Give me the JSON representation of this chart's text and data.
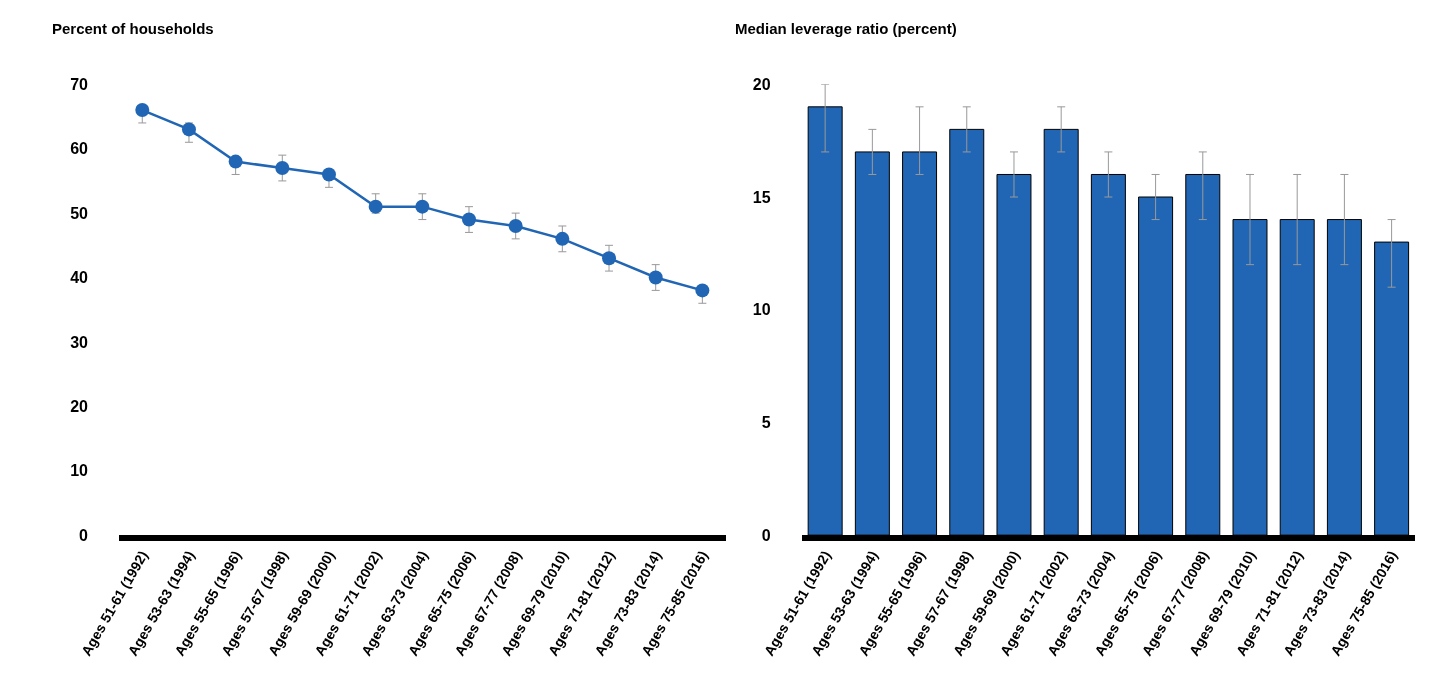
{
  "chart_data": [
    {
      "type": "line",
      "ylabel": "Percent of households",
      "categories": [
        "Ages 51-61 (1992)",
        "Ages 53-63 (1994)",
        "Ages 55-65 (1996)",
        "Ages 57-67 (1998)",
        "Ages 59-69 (2000)",
        "Ages 61-71 (2002)",
        "Ages 63-73 (2004)",
        "Ages 65-75 (2006)",
        "Ages 67-77 (2008)",
        "Ages 69-79 (2010)",
        "Ages 71-81 (2012)",
        "Ages 73-83 (2014)",
        "Ages 75-85 (2016)"
      ],
      "series": [
        {
          "color": "#2166b4",
          "values": [
            66,
            63,
            58,
            57,
            56,
            51,
            51,
            49,
            48,
            46,
            43,
            40,
            38
          ],
          "errors": [
            [
              64,
              66
            ],
            [
              61,
              64
            ],
            [
              56,
              58
            ],
            [
              55,
              59
            ],
            [
              54,
              56
            ],
            [
              50,
              53
            ],
            [
              49,
              53
            ],
            [
              47,
              51
            ],
            [
              46,
              50
            ],
            [
              44,
              48
            ],
            [
              41,
              45
            ],
            [
              38,
              42
            ],
            [
              36,
              38
            ]
          ]
        }
      ],
      "ylim": [
        0,
        70
      ],
      "yticks": [
        0,
        10,
        20,
        30,
        40,
        50,
        60,
        70
      ],
      "marker": "circle",
      "line_style": "solid"
    },
    {
      "type": "bar",
      "ylabel": "Median leverage ratio (percent)",
      "categories": [
        "Ages 51-61 (1992)",
        "Ages 53-63 (1994)",
        "Ages 55-65 (1996)",
        "Ages 57-67 (1998)",
        "Ages 59-69 (2000)",
        "Ages 61-71 (2002)",
        "Ages 63-73 (2004)",
        "Ages 65-75 (2006)",
        "Ages 67-77 (2008)",
        "Ages 69-79 (2010)",
        "Ages 71-81 (2012)",
        "Ages 73-83 (2014)",
        "Ages 75-85 (2016)"
      ],
      "series": [
        {
          "color": "#2166b4",
          "values": [
            19,
            17,
            17,
            18,
            16,
            18,
            16,
            15,
            16,
            14,
            14,
            14,
            13
          ],
          "errors": [
            [
              17,
              20
            ],
            [
              16,
              18
            ],
            [
              16,
              19
            ],
            [
              17,
              19
            ],
            [
              15,
              17
            ],
            [
              17,
              19
            ],
            [
              15,
              17
            ],
            [
              14,
              16
            ],
            [
              14,
              17
            ],
            [
              12,
              16
            ],
            [
              12,
              16
            ],
            [
              12,
              16
            ],
            [
              11,
              14
            ]
          ]
        }
      ],
      "ylim": [
        0,
        20
      ],
      "yticks": [
        0,
        5,
        10,
        15,
        20
      ]
    }
  ]
}
